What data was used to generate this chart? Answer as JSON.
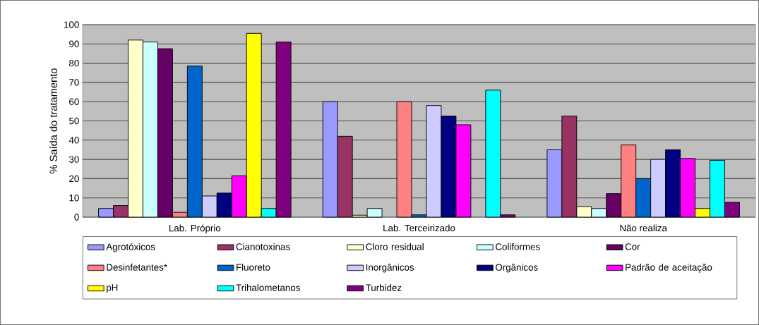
{
  "chart_data": {
    "type": "bar",
    "ylabel": "% Saída do tratamento",
    "categories": [
      "Lab. Próprio",
      "Lab. Terceirizado",
      "Não realiza"
    ],
    "ylim": [
      0,
      100
    ],
    "yticks": [
      0,
      10,
      20,
      30,
      40,
      50,
      60,
      70,
      80,
      90,
      100
    ],
    "grid": "y",
    "legend": "bottom",
    "series": [
      {
        "name": "Agrotóxicos",
        "color": "#9999ff",
        "values": [
          4.5,
          60,
          35
        ]
      },
      {
        "name": "Cianotoxinas",
        "color": "#993366",
        "values": [
          6,
          42,
          52.5
        ]
      },
      {
        "name": "Cloro residual",
        "color": "#ffffcc",
        "values": [
          92,
          1,
          5.5
        ]
      },
      {
        "name": "Coliformes",
        "color": "#ccffff",
        "values": [
          91,
          4.5,
          4.5
        ]
      },
      {
        "name": "Cor",
        "color": "#660066",
        "values": [
          87.5,
          null,
          12.2
        ]
      },
      {
        "name": "Desinfetantes*",
        "color": "#ff8080",
        "values": [
          2.5,
          60,
          37.5
        ]
      },
      {
        "name": "Fluoreto",
        "color": "#0066cc",
        "values": [
          78.5,
          1.2,
          20
        ]
      },
      {
        "name": "Inorgânicos",
        "color": "#ccccff",
        "values": [
          11,
          58,
          30
        ]
      },
      {
        "name": "Orgânicos",
        "color": "#000080",
        "values": [
          12.5,
          52.5,
          35
        ]
      },
      {
        "name": "Padrão de aceitação",
        "color": "#ff00ff",
        "values": [
          21.5,
          48,
          30.5
        ]
      },
      {
        "name": "pH",
        "color": "#ffff00",
        "values": [
          95.5,
          null,
          4.5
        ]
      },
      {
        "name": "Trihalometanos",
        "color": "#00ffff",
        "values": [
          4.5,
          66,
          29.5
        ]
      },
      {
        "name": "Turbidez",
        "color": "#800080",
        "values": [
          91,
          1.2,
          7.7
        ]
      }
    ]
  }
}
